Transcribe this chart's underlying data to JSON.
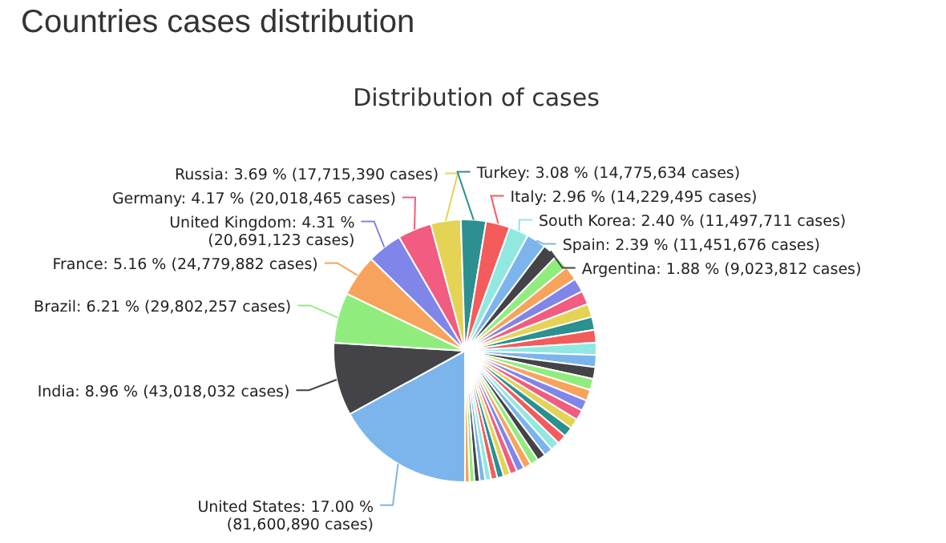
{
  "chart_data": {
    "type": "pie",
    "title": "Countries cases distribution",
    "subtitle": "Distribution of cases",
    "categories": [
      "United States",
      "India",
      "Brazil",
      "France",
      "United Kingdom",
      "Germany",
      "Russia",
      "Turkey",
      "Italy",
      "South Korea",
      "Spain",
      "Argentina",
      null,
      null,
      null,
      null,
      null,
      null,
      null,
      null,
      null,
      null,
      null,
      null,
      null,
      null,
      null,
      null,
      null,
      null,
      null,
      null,
      null,
      null,
      null,
      null,
      null,
      null,
      null,
      null,
      null,
      null,
      null,
      null
    ],
    "values": [
      17.0,
      8.96,
      6.21,
      5.16,
      4.31,
      4.17,
      3.69,
      3.08,
      2.96,
      2.4,
      2.39,
      1.88,
      1.83,
      1.76,
      1.72,
      1.68,
      1.64,
      1.6,
      1.56,
      1.52,
      1.48,
      1.44,
      1.4,
      1.36,
      1.32,
      1.28,
      1.24,
      1.2,
      1.16,
      1.12,
      1.08,
      1.04,
      1.0,
      0.96,
      0.92,
      0.88,
      0.84,
      0.8,
      0.76,
      0.72,
      0.68,
      0.64,
      0.6,
      0.56
    ],
    "value_labels": [
      "17.00 % (81,600,890 cases)",
      "8.96 % (43,018,032 cases)",
      "6.21 % (29,802,257 cases)",
      "5.16 % (24,779,882 cases)",
      "4.31 % (20,691,123 cases)",
      "4.17 % (20,018,465 cases)",
      "3.69 % (17,715,390 cases)",
      "3.08 % (14,775,634 cases)",
      "2.96 % (14,229,495 cases)",
      "2.40 % (11,497,711 cases)",
      "2.39 % (11,451,676 cases)",
      "1.88 % (9,023,812 cases)",
      null,
      null,
      null,
      null,
      null,
      null,
      null,
      null,
      null,
      null,
      null,
      null,
      null,
      null,
      null,
      null,
      null,
      null,
      null,
      null,
      null,
      null,
      null,
      null,
      null,
      null,
      null,
      null,
      null,
      null,
      null,
      null
    ],
    "colors": [
      "#7cb5ec",
      "#434348",
      "#90ed7d",
      "#f7a35c",
      "#8085e9",
      "#f15c80",
      "#e4d354",
      "#2b908f",
      "#f45b5b",
      "#91e8e1",
      "#7cb5ec",
      "#434348",
      "#90ed7d",
      "#f7a35c",
      "#8085e9",
      "#f15c80",
      "#e4d354",
      "#2b908f",
      "#f45b5b",
      "#91e8e1",
      "#7cb5ec",
      "#434348",
      "#90ed7d",
      "#f7a35c",
      "#8085e9",
      "#f15c80",
      "#e4d354",
      "#2b908f",
      "#f45b5b",
      "#91e8e1",
      "#7cb5ec",
      "#434348",
      "#90ed7d",
      "#f7a35c",
      "#8085e9",
      "#f15c80",
      "#e4d354",
      "#2b908f",
      "#f45b5b",
      "#91e8e1",
      "#7cb5ec",
      "#434348",
      "#90ed7d",
      "#f7a35c"
    ]
  }
}
